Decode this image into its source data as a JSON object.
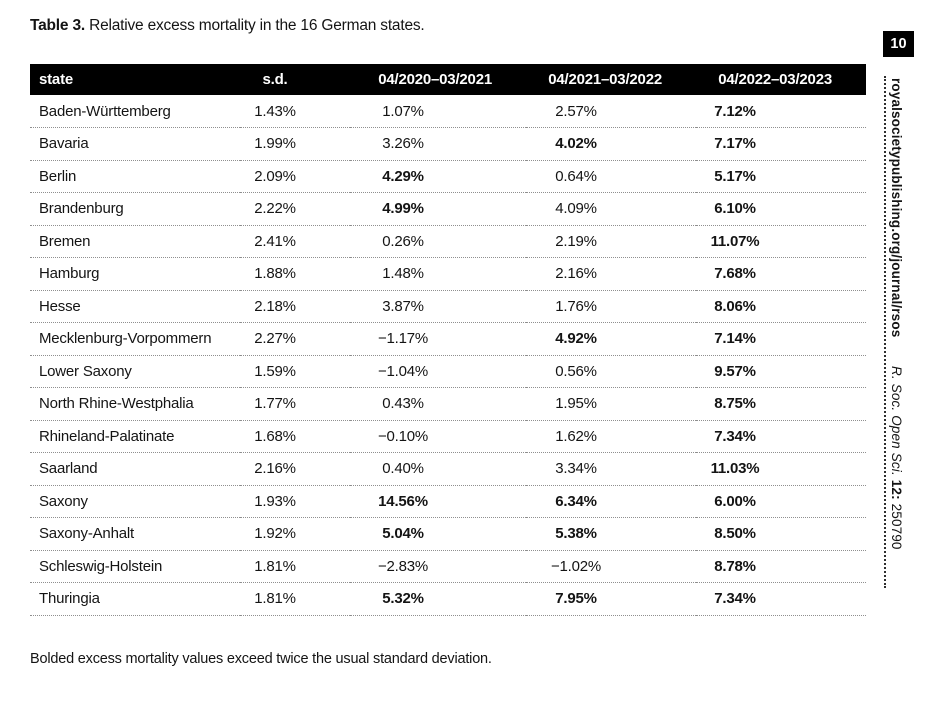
{
  "page": {
    "caption_label": "Table 3.",
    "caption_text": " Relative excess mortality in the 16 German states.",
    "footnote": "Bolded excess mortality values exceed twice the usual standard deviation.",
    "page_number": "10",
    "sidebar": {
      "journal_url": "royalsocietypublishing.org/journal/rsos",
      "citation_journal": "R. Soc. Open Sci. ",
      "citation_volume": "12: ",
      "citation_article": "250790"
    }
  },
  "table": {
    "columns": [
      "state",
      "s.d.",
      "04/2020–03/2021",
      "04/2021–03/2022",
      "04/2022–03/2023"
    ],
    "rows": [
      {
        "state": "Baden-Württemberg",
        "sd": "1.43%",
        "values": [
          "1.07%",
          "2.57%",
          "7.12%"
        ],
        "bold": [
          false,
          false,
          true
        ]
      },
      {
        "state": "Bavaria",
        "sd": "1.99%",
        "values": [
          "3.26%",
          "4.02%",
          "7.17%"
        ],
        "bold": [
          false,
          true,
          true
        ]
      },
      {
        "state": "Berlin",
        "sd": "2.09%",
        "values": [
          "4.29%",
          "0.64%",
          "5.17%"
        ],
        "bold": [
          true,
          false,
          true
        ]
      },
      {
        "state": "Brandenburg",
        "sd": "2.22%",
        "values": [
          "4.99%",
          "4.09%",
          "6.10%"
        ],
        "bold": [
          true,
          false,
          true
        ]
      },
      {
        "state": "Bremen",
        "sd": "2.41%",
        "values": [
          "0.26%",
          "2.19%",
          "11.07%"
        ],
        "bold": [
          false,
          false,
          true
        ]
      },
      {
        "state": "Hamburg",
        "sd": "1.88%",
        "values": [
          "1.48%",
          "2.16%",
          "7.68%"
        ],
        "bold": [
          false,
          false,
          true
        ]
      },
      {
        "state": "Hesse",
        "sd": "2.18%",
        "values": [
          "3.87%",
          "1.76%",
          "8.06%"
        ],
        "bold": [
          false,
          false,
          true
        ]
      },
      {
        "state": "Mecklenburg-Vorpommern",
        "sd": "2.27%",
        "values": [
          "−1.17%",
          "4.92%",
          "7.14%"
        ],
        "bold": [
          false,
          true,
          true
        ]
      },
      {
        "state": "Lower Saxony",
        "sd": "1.59%",
        "values": [
          "−1.04%",
          "0.56%",
          "9.57%"
        ],
        "bold": [
          false,
          false,
          true
        ]
      },
      {
        "state": "North Rhine-Westphalia",
        "sd": "1.77%",
        "values": [
          "0.43%",
          "1.95%",
          "8.75%"
        ],
        "bold": [
          false,
          false,
          true
        ]
      },
      {
        "state": "Rhineland-Palatinate",
        "sd": "1.68%",
        "values": [
          "−0.10%",
          "1.62%",
          "7.34%"
        ],
        "bold": [
          false,
          false,
          true
        ]
      },
      {
        "state": "Saarland",
        "sd": "2.16%",
        "values": [
          "0.40%",
          "3.34%",
          "11.03%"
        ],
        "bold": [
          false,
          false,
          true
        ]
      },
      {
        "state": "Saxony",
        "sd": "1.93%",
        "values": [
          "14.56%",
          "6.34%",
          "6.00%"
        ],
        "bold": [
          true,
          true,
          true
        ]
      },
      {
        "state": "Saxony-Anhalt",
        "sd": "1.92%",
        "values": [
          "5.04%",
          "5.38%",
          "8.50%"
        ],
        "bold": [
          true,
          true,
          true
        ]
      },
      {
        "state": "Schleswig-Holstein",
        "sd": "1.81%",
        "values": [
          "−2.83%",
          "−1.02%",
          "8.78%"
        ],
        "bold": [
          false,
          false,
          true
        ]
      },
      {
        "state": "Thuringia",
        "sd": "1.81%",
        "values": [
          "5.32%",
          "7.95%",
          "7.34%"
        ],
        "bold": [
          true,
          true,
          true
        ]
      }
    ],
    "colors": {
      "header_bg": "#000000",
      "header_text": "#ffffff",
      "separator": "#8f8f8f"
    }
  }
}
